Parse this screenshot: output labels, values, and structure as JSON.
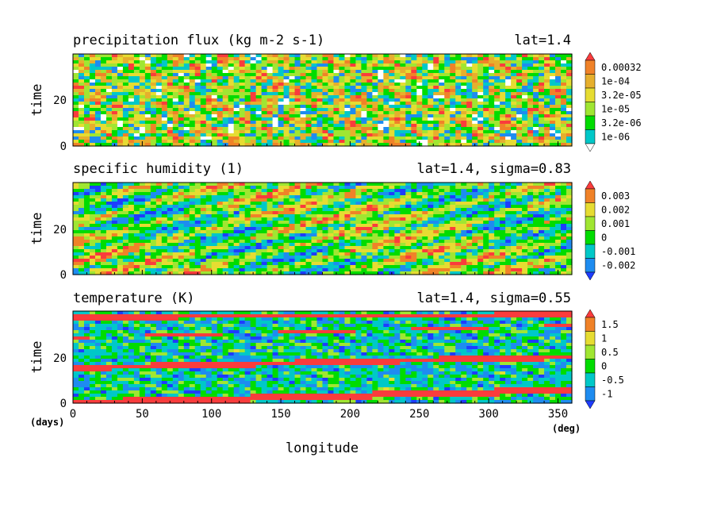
{
  "chart_data": [
    {
      "type": "heatmap",
      "title": "precipitation flux (kg m-2 s-1)",
      "subtitle": "lat=1.4",
      "ylabel": "time",
      "ylim": [
        0,
        40
      ],
      "yticks": [
        "0",
        "20"
      ],
      "xlim": [
        0,
        360
      ],
      "colorbar_labels": [
        "0.00032",
        "1e-04",
        "3.2e-05",
        "1e-05",
        "3.2e-06",
        "1e-06"
      ],
      "colors": [
        "#ffffff",
        "#1e8cf0",
        "#00c8c8",
        "#00dc00",
        "#a0e632",
        "#e6dc32",
        "#e6af2d",
        "#f08228",
        "#fa3c3c"
      ],
      "pattern": "noisy"
    },
    {
      "type": "heatmap",
      "title": "specific humidity (1)",
      "subtitle": "lat=1.4, sigma=0.83",
      "ylabel": "time",
      "ylim": [
        0,
        40
      ],
      "yticks": [
        "0",
        "20"
      ],
      "xlim": [
        0,
        360
      ],
      "colorbar_labels": [
        "0.003",
        "0.002",
        "0.001",
        "0",
        "-0.001",
        "-0.002"
      ],
      "colors": [
        "#1e3cff",
        "#1e8cf0",
        "#00c8c8",
        "#00dc00",
        "#a0e632",
        "#e6dc32",
        "#f08228",
        "#fa3c3c"
      ],
      "pattern": "streaks"
    },
    {
      "type": "heatmap",
      "title": "temperature (K)",
      "subtitle": "lat=1.4, sigma=0.55",
      "ylabel": "time",
      "ylim": [
        0,
        40
      ],
      "yticks": [
        "0",
        "20"
      ],
      "xlim": [
        0,
        360
      ],
      "xlabel": "longitude",
      "xticks": [
        "0",
        "50",
        "100",
        "150",
        "200",
        "250",
        "300",
        "350"
      ],
      "xunit": "(deg)",
      "yunit": "(days)",
      "colorbar_labels": [
        "1.5",
        "1",
        "0.5",
        "0",
        "-0.5",
        "-1"
      ],
      "colors": [
        "#1e3cff",
        "#1e8cf0",
        "#00c8c8",
        "#00dc00",
        "#a0e632",
        "#e6dc32",
        "#f08228",
        "#fa3c3c"
      ],
      "pattern": "waves"
    }
  ]
}
